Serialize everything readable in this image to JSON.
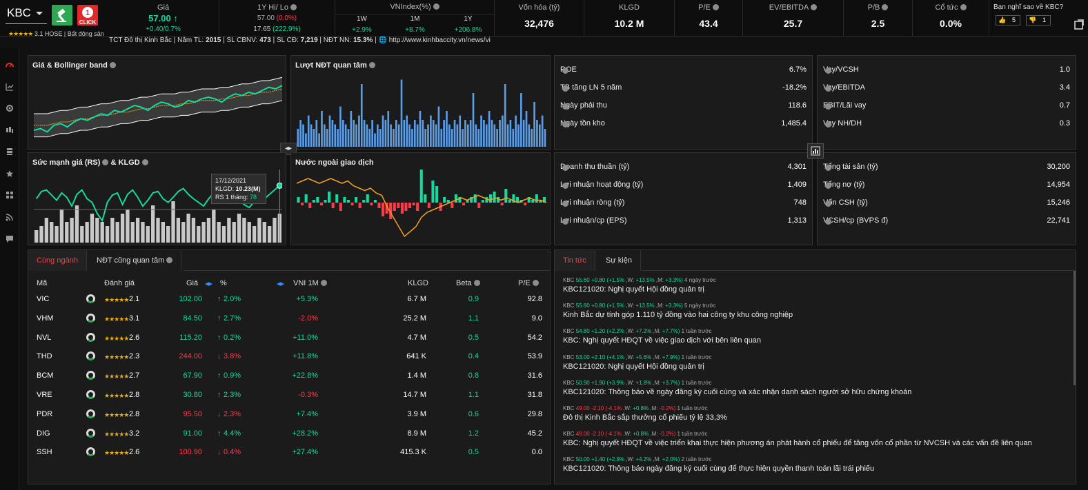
{
  "header": {
    "ticker": "KBC",
    "click_label": "CLICK",
    "rating_value": "3.1",
    "exchange": "HOSE",
    "sector": "Bất động sản",
    "price": {
      "label": "Giá",
      "value": "57.00",
      "change": "+0.40/0.7%"
    },
    "hilo": {
      "label": "1Y Hi/ Lo",
      "hi": "57.00",
      "hi_pct": "(0.0%)",
      "lo": "17.65",
      "lo_pct": "(222.9%)"
    },
    "vnindex": {
      "label": "VNIndex(%)",
      "cols": [
        "1W",
        "1M",
        "1Y"
      ],
      "vals": [
        "+2.9%",
        "+8.7%",
        "+206.8%"
      ]
    },
    "metrics": [
      {
        "label": "Vốn hóa (tỷ)",
        "value": "32,476"
      },
      {
        "label": "KLGD",
        "value": "10.2 M"
      },
      {
        "label": "P/E",
        "value": "43.4"
      },
      {
        "label": "EV/EBITDA",
        "value": "25.7"
      },
      {
        "label": "P/B",
        "value": "2.5"
      },
      {
        "label": "Cổ tức",
        "value": "0.0%"
      }
    ],
    "vote": {
      "label": "Bạn nghĩ sao về KBC?",
      "up": "5",
      "down": "1"
    }
  },
  "infobar": {
    "company": "TCT Đô thị Kinh Bắc",
    "year_label": "Năm TL:",
    "year": "2015",
    "staff_label": "SL CBNV:",
    "staff": "473",
    "shares_label": "SL CĐ:",
    "shares": "7,219",
    "foreign_label": "NĐT NN:",
    "foreign": "15.3%",
    "url": "http://www.kinhbaccity.vn/news/vi"
  },
  "charts": {
    "bollinger_title": "Giá & Bollinger band",
    "investor_title": "Lượt NĐT quan tâm",
    "rs_title_a": "Sức mạnh giá (RS)",
    "rs_title_b": "& KLGD",
    "foreign_title": "Nước ngoài giao dịch",
    "tooltip": {
      "date": "17/12/2021",
      "vol_label": "KLGD:",
      "vol": "10.23(M)",
      "rs_label": "RS 1 tháng:",
      "rs": "78"
    }
  },
  "chart_data": [
    {
      "type": "line",
      "title": "Giá & Bollinger band",
      "series": [
        {
          "values": [
            30,
            31,
            29,
            33,
            34,
            32,
            35,
            37,
            36,
            38,
            40,
            39,
            42,
            41,
            43,
            45,
            44,
            42,
            45,
            47,
            46,
            44,
            45,
            48,
            47,
            49,
            50,
            49,
            47,
            50,
            52,
            51,
            53,
            52,
            54,
            56,
            55,
            57
          ]
        },
        {
          "values": [
            33,
            33,
            33,
            34,
            35,
            35,
            36,
            37,
            37,
            38,
            39,
            39,
            40,
            41,
            41,
            42,
            43,
            43,
            44,
            45,
            45,
            45,
            46,
            46,
            47,
            48,
            48,
            48,
            49,
            49,
            50,
            51,
            51,
            52,
            53,
            53,
            54,
            55
          ]
        }
      ]
    },
    {
      "type": "bar",
      "title": "Lượt NĐT quan tâm",
      "values": [
        4,
        6,
        5,
        3,
        7,
        5,
        4,
        6,
        3,
        8,
        5,
        4,
        7,
        6,
        5,
        4,
        9,
        6,
        5,
        4,
        8,
        6,
        5,
        7,
        14,
        6,
        5,
        4,
        6,
        3,
        5,
        4,
        7,
        6,
        8,
        5,
        4,
        6,
        5,
        15,
        6,
        7,
        5,
        4,
        6,
        5,
        8,
        6,
        4,
        5,
        7,
        6,
        5,
        9,
        4,
        6,
        8,
        5,
        4,
        6,
        5,
        7,
        4,
        6,
        5,
        6,
        12,
        5,
        4,
        7,
        6,
        5,
        8,
        6,
        5,
        4,
        6,
        7,
        14,
        5,
        6,
        4,
        7,
        5,
        12,
        6,
        8,
        5,
        4,
        10,
        6,
        5,
        7,
        4
      ]
    },
    {
      "type": "line",
      "title": "Sức mạnh giá (RS)",
      "values": [
        60,
        70,
        72,
        65,
        58,
        68,
        62,
        50,
        66,
        72,
        60,
        55,
        40,
        30,
        55,
        65,
        68,
        52,
        66,
        72,
        62,
        50,
        58,
        68,
        70,
        60,
        55,
        62,
        70,
        74,
        66,
        60,
        55,
        50,
        60,
        68,
        64,
        60,
        66,
        70,
        58,
        52,
        48,
        56,
        62,
        60,
        66,
        72,
        78
      ],
      "bars": [
        3,
        4,
        6,
        5,
        4,
        8,
        5,
        6,
        9,
        4,
        5,
        7,
        6,
        5,
        4,
        6,
        5,
        7,
        8,
        5,
        6,
        5,
        4,
        9,
        6,
        5,
        4,
        10,
        6,
        5,
        7,
        6,
        4,
        5,
        6,
        8,
        5,
        4,
        6,
        5,
        7,
        6,
        5,
        4,
        6,
        5,
        4,
        6,
        7
      ]
    },
    {
      "type": "bar",
      "title": "Nước ngoài giao dịch",
      "values": [
        2,
        -1,
        3,
        -2,
        1,
        2,
        -1,
        1,
        4,
        -2,
        3,
        -3,
        2,
        1,
        -1,
        2,
        -2,
        1,
        3,
        -1,
        1,
        -2,
        -5,
        -4,
        -6,
        -3,
        -2,
        -4,
        -3,
        -2,
        -1,
        -3,
        12,
        3,
        -2,
        8,
        6,
        -3,
        2,
        1,
        -2,
        3,
        2,
        -1,
        1,
        2,
        3,
        -2,
        1,
        2,
        3,
        4,
        2,
        -1,
        5,
        1,
        3,
        2,
        1,
        -1,
        2,
        1,
        3,
        1,
        2
      ],
      "line": [
        8,
        9,
        10,
        9,
        8,
        9,
        10,
        9,
        8,
        9,
        7,
        6,
        5,
        6,
        4,
        3,
        -2,
        -6,
        -10,
        -14,
        -12,
        -10,
        -6,
        -4,
        -3,
        -2,
        -1,
        0,
        1,
        2,
        1,
        2,
        3,
        2,
        1,
        2,
        1,
        2,
        1,
        0,
        1,
        2,
        1,
        1,
        0
      ]
    }
  ],
  "ratios_left": [
    {
      "k": "ROE",
      "v": "6.7%"
    },
    {
      "k": "TB tăng LN 5 năm",
      "v": "-18.2%"
    },
    {
      "k": "Ngày phải thu",
      "v": "118.6"
    },
    {
      "k": "Ngày tồn kho",
      "v": "1,485.4"
    }
  ],
  "ratios_right": [
    {
      "k": "Vay/VCSH",
      "v": "1.0"
    },
    {
      "k": "Vay/EBITDA",
      "v": "3.4"
    },
    {
      "k": "EBIT/Lãi vay",
      "v": "0.7"
    },
    {
      "k": "Vay NH/DH",
      "v": "0.3"
    }
  ],
  "fin_left": [
    {
      "k": "Doanh thu thuần (tỷ)",
      "v": "4,301"
    },
    {
      "k": "Lợi nhuận hoạt động (tỷ)",
      "v": "1,409"
    },
    {
      "k": "Lợi nhuận ròng (tỷ)",
      "v": "748"
    },
    {
      "k": "Lợi nhuận/cp (EPS)",
      "v": "1,313"
    }
  ],
  "fin_right": [
    {
      "k": "Tổng tài sản (tỷ)",
      "v": "30,200"
    },
    {
      "k": "Tổng nợ (tỷ)",
      "v": "14,954"
    },
    {
      "k": "Vốn CSH (tỷ)",
      "v": "15,246"
    },
    {
      "k": "VCSH/cp (BVPS đ)",
      "v": "22,741"
    }
  ],
  "peers": {
    "tabs": [
      "Cùng ngành",
      "NĐT cũng quan tâm"
    ],
    "headers": {
      "ma": "Mã",
      "rating": "Đánh giá",
      "price": "Giá",
      "pct": "%",
      "vni": "VNI 1M",
      "vol": "KLGD",
      "beta": "Beta",
      "pe": "P/E"
    },
    "rows": [
      {
        "code": "VIC",
        "rating": "2.1",
        "price": "102.00",
        "pct": "2.0%",
        "dir": "up",
        "vni": "+5.3%",
        "vol": "6.7 M",
        "beta": "0.9",
        "pe": "92.8"
      },
      {
        "code": "VHM",
        "rating": "3.1",
        "price": "84.50",
        "pct": "2.7%",
        "dir": "up",
        "vni": "-2.0%",
        "vol": "25.2 M",
        "beta": "1.1",
        "pe": "9.0"
      },
      {
        "code": "NVL",
        "rating": "2.6",
        "price": "115.20",
        "pct": "0.2%",
        "dir": "up",
        "vni": "+11.0%",
        "vol": "4.7 M",
        "beta": "0.5",
        "pe": "54.2"
      },
      {
        "code": "THD",
        "rating": "2.3",
        "price": "244.00",
        "pct": "3.8%",
        "dir": "dn",
        "vni": "+11.8%",
        "vol": "641 K",
        "beta": "0.4",
        "pe": "53.9"
      },
      {
        "code": "BCM",
        "rating": "2.7",
        "price": "67.90",
        "pct": "0.9%",
        "dir": "up",
        "vni": "+22.8%",
        "vol": "1.4 M",
        "beta": "0.8",
        "pe": "31.6"
      },
      {
        "code": "VRE",
        "rating": "2.8",
        "price": "30.80",
        "pct": "2.3%",
        "dir": "up",
        "vni": "-0.3%",
        "vol": "14.7 M",
        "beta": "1.1",
        "pe": "31.8"
      },
      {
        "code": "PDR",
        "rating": "2.8",
        "price": "95.50",
        "pct": "2.3%",
        "dir": "dn",
        "vni": "+7.4%",
        "vol": "3.9 M",
        "beta": "0.6",
        "pe": "29.8"
      },
      {
        "code": "DIG",
        "rating": "3.2",
        "price": "91.00",
        "pct": "4.4%",
        "dir": "up",
        "vni": "+28.2%",
        "vol": "8.9 M",
        "beta": "1.2",
        "pe": "45.2"
      },
      {
        "code": "SSH",
        "rating": "2.6",
        "price": "100.90",
        "pct": "0.4%",
        "dir": "dn",
        "vni": "+27.4%",
        "vol": "415.3 K",
        "beta": "0.5",
        "pe": "0.0"
      }
    ]
  },
  "news": {
    "tabs": [
      "Tin tức",
      "Sự kiện"
    ],
    "items": [
      {
        "code": "KBC",
        "price": "55.60",
        "chg": "+0.80",
        "pct": "(+1.5%",
        "w": "+13.5%",
        "m": "+3.3%)",
        "when": "4 ngày trước",
        "title": "KBC121020: Nghị quyết Hội đồng quản trị",
        "dir": "up"
      },
      {
        "code": "KBC",
        "price": "55.60",
        "chg": "+0.80",
        "pct": "(+1.5%",
        "w": "+13.5%",
        "m": "+3.3%)",
        "when": "5 ngày trước",
        "title": "Kinh Bắc dự tính góp 1.110 tỷ đồng vào hai công ty khu công nghiệp",
        "dir": "up"
      },
      {
        "code": "KBC",
        "price": "54.80",
        "chg": "+1.20",
        "pct": "(+2.2%",
        "w": "+7.2%",
        "m": "+7.7%)",
        "when": "1 tuần trước",
        "title": "KBC: Nghị quyết HĐQT về việc giao dịch với bên liên quan",
        "dir": "up"
      },
      {
        "code": "KBC",
        "price": "53.00",
        "chg": "+2.10",
        "pct": "(+4.1%",
        "w": "+5.6%",
        "m": "+7.9%)",
        "when": "1 tuần trước",
        "title": "KBC121020: Nghị quyết Hội đồng quản trị",
        "dir": "up"
      },
      {
        "code": "KBC",
        "price": "50.90",
        "chg": "+1.90",
        "pct": "(+3.9%",
        "w": "+1.8%",
        "m": "+3.7%)",
        "when": "1 tuần trước",
        "title": "KBC121020: Thông báo về ngày đăng ký cuối cùng và xác nhận danh sách người sở hữu chứng khoán",
        "dir": "up"
      },
      {
        "code": "KBC",
        "price": "49.00",
        "chg": "-2.10",
        "pct": "(-4.1%",
        "w": "+0.8%",
        "m": "-0.2%)",
        "when": "1 tuần trước",
        "title": "Đô thị Kinh Bắc sắp thưởng cổ phiếu tỷ lệ 33,3%",
        "dir": "dn"
      },
      {
        "code": "KBC",
        "price": "49.00",
        "chg": "-2.10",
        "pct": "(-4.1%",
        "w": "+0.8%",
        "m": "-0.2%)",
        "when": "1 tuần trước",
        "title": "KBC: Nghị quyết HĐQT về việc triển khai thực hiện phương án phát hành cổ phiếu để tăng vốn cổ phần từ NVCSH và các vấn đề liên quan",
        "dir": "dn"
      },
      {
        "code": "KBC",
        "price": "50.00",
        "chg": "+1.40",
        "pct": "(+2.9%",
        "w": "+4.2%",
        "m": "+2.0%)",
        "when": "2 tuần trước",
        "title": "KBC121020: Thông báo ngày đăng ký cuối cùng để thực hiện quyền thanh toán lãi trái phiếu",
        "dir": "up"
      }
    ]
  },
  "colors": {
    "up": "#16d9a0",
    "down": "#ff3b4a",
    "ref": "#e7b010",
    "accent": "#e02a2a",
    "bg": "#111111",
    "panel": "#1b1b1b"
  }
}
